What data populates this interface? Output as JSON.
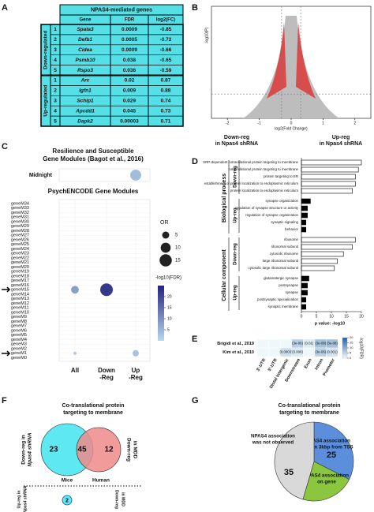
{
  "letters": [
    "A",
    "B",
    "C",
    "D",
    "E",
    "F",
    "G"
  ],
  "table": {
    "title": "NPAS4-mediated genes",
    "columns": [
      "Gene",
      "FDR",
      "log2(FC)"
    ],
    "groups": [
      {
        "name": "Down-regulated",
        "rows": [
          [
            1,
            "Spata3",
            0.0009,
            -0.85
          ],
          [
            2,
            "Defb1",
            0.0005,
            -0.72
          ],
          [
            3,
            "Cidea",
            0.0009,
            -0.66
          ],
          [
            4,
            "Psmb10",
            0.038,
            -0.65
          ],
          [
            5,
            "Rspo3",
            0.036,
            -0.59
          ]
        ]
      },
      {
        "name": "Up-regulated",
        "rows": [
          [
            1,
            "Arc",
            0.02,
            0.87
          ],
          [
            2,
            "Igfn1",
            0.009,
            0.88
          ],
          [
            3,
            "Schip1",
            0.029,
            0.74
          ],
          [
            4,
            "Apcdd1",
            0.045,
            0.73
          ],
          [
            5,
            "Dapk2",
            3e-05,
            0.71
          ]
        ]
      }
    ]
  },
  "volcano": {
    "type": "scatter",
    "xlabel": "log2(Fold Change)",
    "ylabel": "-log10(P)",
    "xlim": [
      -2.5,
      2.5
    ],
    "xticks": [
      -2,
      -1,
      0,
      1,
      2
    ],
    "ylim": [
      0,
      6
    ],
    "vlines": [
      -0.3,
      0.3
    ],
    "hline": 1.3,
    "annotations": [
      [
        "Down-reg",
        "in Npas4 shRNA"
      ],
      [
        "Up-reg",
        "in Npas4 shRNA"
      ]
    ]
  },
  "dotplot": {
    "type": "dot",
    "title": [
      "Resilience and Susceptible",
      "Gene Modules (Bagot et al., 2016)"
    ],
    "subtitle": "PsychENCODE Gene Modules",
    "columns": [
      [
        "All"
      ],
      [
        "Down",
        "-Reg"
      ],
      [
        "Up",
        "-Reg"
      ]
    ],
    "top": {
      "rows": [
        "Midnight"
      ],
      "points": [
        {
          "row": 0,
          "col": 2,
          "or": 12,
          "logfdr": 4
        }
      ]
    },
    "rows": [
      "geneM34",
      "geneM33",
      "geneM32",
      "geneM31",
      "geneM30",
      "geneM29",
      "geneM28",
      "geneM27",
      "geneM26",
      "geneM25",
      "geneM24",
      "geneM23",
      "geneM22",
      "geneM21",
      "geneM20",
      "geneM19",
      "geneM18",
      "geneM17",
      "geneM16",
      "geneM15",
      "geneM14",
      "geneM13",
      "geneM12",
      "geneM11",
      "geneM10",
      "geneM9",
      "geneM8",
      "geneM7",
      "geneM6",
      "geneM5",
      "geneM4",
      "geneM3",
      "geneM2",
      "geneM1",
      "geneM0"
    ],
    "points": [
      {
        "row": 19,
        "col": 0,
        "or": 6,
        "logfdr": 8
      },
      {
        "row": 19,
        "col": 1,
        "or": 16,
        "logfdr": 22
      },
      {
        "row": 33,
        "col": 2,
        "or": 4,
        "logfdr": 3
      },
      {
        "row": 33,
        "col": 0,
        "or": 1,
        "logfdr": 2
      }
    ],
    "size_legend": {
      "title": "OR",
      "values": [
        5,
        10,
        15
      ]
    },
    "color_legend": {
      "title": "-log10(FDR)",
      "lim": [
        0,
        25
      ],
      "ticks": [
        5,
        10,
        15,
        20
      ]
    }
  },
  "go": {
    "type": "bar",
    "orientation": "horizontal",
    "xlabel": "p value: -log10",
    "xlim": [
      0,
      20
    ],
    "xticks": [
      0,
      5,
      10,
      15,
      20
    ],
    "groups": [
      {
        "name": "Biological process",
        "subgroups": [
          {
            "name": "Down-reg",
            "color": "#ffffff",
            "categories": [
              "SRP-dependent cotranslational protein targeting to membrane",
              "cotranslational protein targeting to membrane",
              "protein targeting to ER",
              "establishment of protein localization to endoplasmic reticulum",
              "protein localization to endoplasmic reticulum"
            ],
            "values": [
              20,
              19,
              18,
              18,
              17
            ]
          },
          {
            "name": "Up-reg",
            "color": "#000000",
            "categories": [
              "synapse organization",
              "regulation of synapse structure or activity",
              "regulation of synapse organization",
              "synaptic signaling",
              "behavior"
            ],
            "values": [
              3,
              2,
              2,
              1.5,
              1.5
            ]
          }
        ]
      },
      {
        "name": "Cellular component",
        "subgroups": [
          {
            "name": "Down-reg",
            "color": "#ffffff",
            "categories": [
              "ribosome",
              "ribosomal subunit",
              "cytosolic ribosome",
              "large ribosomal subunit",
              "cytosolic large ribosomal subunit"
            ],
            "values": [
              18,
              17,
              14,
              12,
              11
            ]
          },
          {
            "name": "Up-reg",
            "color": "#000000",
            "categories": [
              "glutamatergic synapse",
              "postsynapse",
              "synapse",
              "postsynaptic specialization",
              "synaptic membrane"
            ],
            "values": [
              2.5,
              2,
              2,
              1.5,
              1.5
            ]
          }
        ]
      }
    ]
  },
  "heatmap": {
    "type": "heatmap",
    "columns": [
      "3'-UTR",
      "5'-UTR",
      "Distal Intergenic",
      "Downstream",
      "Exon",
      "Intron",
      "Promoter"
    ],
    "rows": [
      "Brigidi et al., 2019",
      "Kim et al., 2010"
    ],
    "fdr": [
      [
        null,
        null,
        null,
        3e-06,
        0.01,
        3e-08,
        3e-08
      ],
      [
        null,
        null,
        0.0003,
        0.006,
        null,
        3e-06,
        0.001
      ]
    ],
    "labels": [
      [
        null,
        null,
        null,
        "(3e-06)",
        "(0.01)",
        "(3e-08)",
        "(3e-08)"
      ],
      [
        null,
        null,
        "(0.0003)",
        "(0.006)",
        null,
        "(3e-06)",
        "(0.001)"
      ]
    ],
    "color_legend": {
      "title": "-log10(FDR)",
      "lim": [
        0,
        20
      ],
      "ticks": [
        0,
        5,
        10,
        15,
        20
      ]
    }
  },
  "venn": {
    "type": "venn",
    "title": [
      "Co-translational protein",
      "targeting to membrane"
    ],
    "left_label": [
      "Down-reg in",
      "Npas4 shRNA"
    ],
    "right_label": [
      "Down-reg",
      "in MDD"
    ],
    "values": [
      23,
      45,
      12
    ],
    "set_names": [
      "Mice",
      "Human"
    ],
    "bottom": {
      "left_label": [
        "Up-reg in",
        "Npas4 shRNA"
      ],
      "right_label": [
        "Down-reg",
        "in MDD"
      ],
      "value": 2
    }
  },
  "pie": {
    "type": "pie",
    "title": [
      "Co-translational protein",
      "targeting to membrane"
    ],
    "values": [
      25,
      17,
      35
    ],
    "labels": [
      [
        "NPAS4 association",
        "within 3kbp from TSS"
      ],
      [
        "NPAS4 association",
        "on gene"
      ],
      [
        "NPAS4 association",
        "was not observed"
      ]
    ],
    "colors": [
      "#5b8fdc",
      "#8cc63f",
      "#d9d9d9"
    ]
  }
}
